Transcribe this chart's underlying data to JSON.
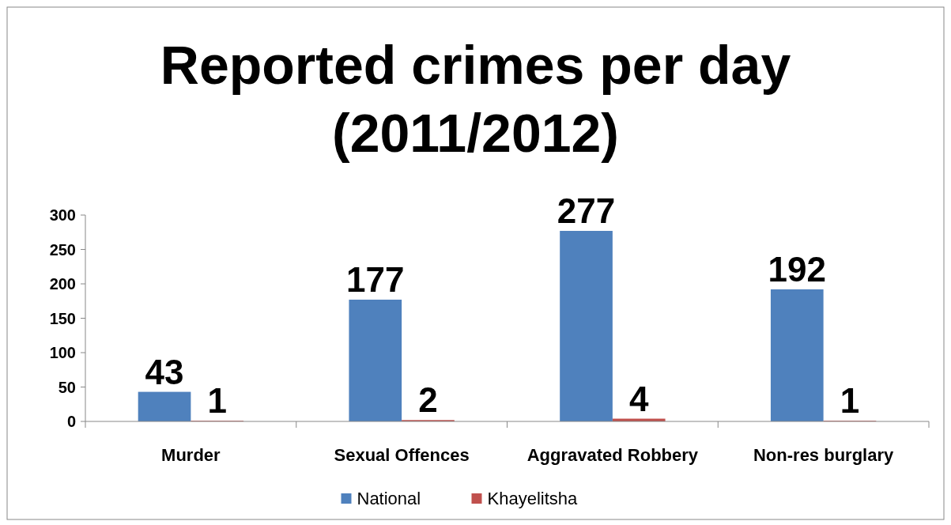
{
  "chart_data": {
    "type": "bar",
    "title": "Reported crimes per day (2011/2012)",
    "categories": [
      "Murder",
      "Sexual Offences",
      "Aggravated Robbery",
      "Non-res burglary"
    ],
    "series": [
      {
        "name": "National",
        "color": "#4f81bd",
        "values": [
          43,
          177,
          277,
          192
        ]
      },
      {
        "name": "Khayelitsha",
        "color": "#c0504d",
        "values": [
          1,
          2,
          4,
          1
        ]
      }
    ],
    "ylim": [
      0,
      300
    ],
    "yticks": [
      0,
      50,
      100,
      150,
      200,
      250,
      300
    ],
    "data_labels": true,
    "legend": "bottom",
    "grid": false
  }
}
